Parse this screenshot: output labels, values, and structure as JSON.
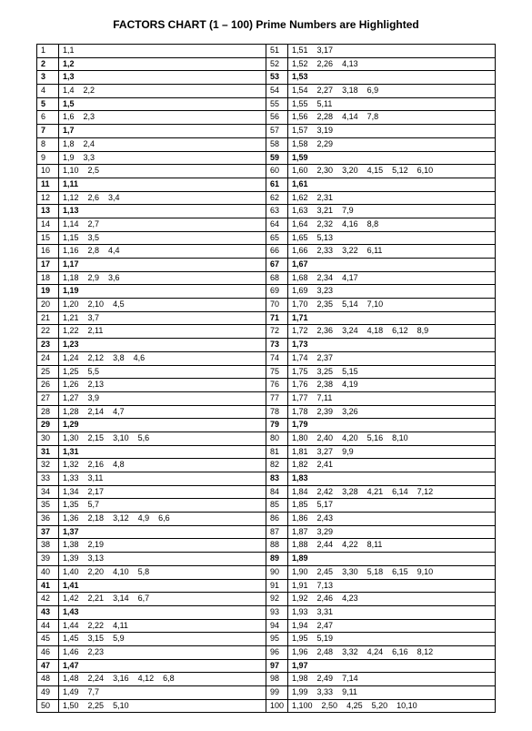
{
  "title": "FACTORS CHART (1 – 100)  Prime Numbers are Highlighted",
  "colors": {
    "bg": "#ffffff",
    "border": "#000000",
    "text": "#000000"
  },
  "font": {
    "title_size": 12,
    "cell_size": 9,
    "family": "Arial"
  },
  "rows": [
    {
      "l": {
        "n": 1,
        "f": [
          "1,1"
        ],
        "p": false
      },
      "r": {
        "n": 51,
        "f": [
          "1,51",
          "3,17"
        ],
        "p": false
      }
    },
    {
      "l": {
        "n": 2,
        "f": [
          "1,2"
        ],
        "p": true
      },
      "r": {
        "n": 52,
        "f": [
          "1,52",
          "2,26",
          "4,13"
        ],
        "p": false
      }
    },
    {
      "l": {
        "n": 3,
        "f": [
          "1,3"
        ],
        "p": true
      },
      "r": {
        "n": 53,
        "f": [
          "1,53"
        ],
        "p": true
      }
    },
    {
      "l": {
        "n": 4,
        "f": [
          "1,4",
          "2,2"
        ],
        "p": false
      },
      "r": {
        "n": 54,
        "f": [
          "1,54",
          "2,27",
          "3,18",
          "6,9"
        ],
        "p": false
      }
    },
    {
      "l": {
        "n": 5,
        "f": [
          "1,5"
        ],
        "p": true
      },
      "r": {
        "n": 55,
        "f": [
          "1,55",
          "5,11"
        ],
        "p": false
      }
    },
    {
      "l": {
        "n": 6,
        "f": [
          "1,6",
          "2,3"
        ],
        "p": false
      },
      "r": {
        "n": 56,
        "f": [
          "1,56",
          "2,28",
          "4,14",
          "7,8"
        ],
        "p": false
      }
    },
    {
      "l": {
        "n": 7,
        "f": [
          "1,7"
        ],
        "p": true
      },
      "r": {
        "n": 57,
        "f": [
          "1,57",
          "3,19"
        ],
        "p": false
      }
    },
    {
      "l": {
        "n": 8,
        "f": [
          "1,8",
          "2,4"
        ],
        "p": false
      },
      "r": {
        "n": 58,
        "f": [
          "1,58",
          "2,29"
        ],
        "p": false
      }
    },
    {
      "l": {
        "n": 9,
        "f": [
          "1,9",
          "3,3"
        ],
        "p": false
      },
      "r": {
        "n": 59,
        "f": [
          "1,59"
        ],
        "p": true
      }
    },
    {
      "l": {
        "n": 10,
        "f": [
          "1,10",
          "2,5"
        ],
        "p": false
      },
      "r": {
        "n": 60,
        "f": [
          "1,60",
          "2,30",
          "3,20",
          "4,15",
          "5,12",
          "6,10"
        ],
        "p": false
      }
    },
    {
      "l": {
        "n": 11,
        "f": [
          "1,11"
        ],
        "p": true
      },
      "r": {
        "n": 61,
        "f": [
          "1,61"
        ],
        "p": true
      }
    },
    {
      "l": {
        "n": 12,
        "f": [
          "1,12",
          "2,6",
          "3,4"
        ],
        "p": false
      },
      "r": {
        "n": 62,
        "f": [
          "1,62",
          "2,31"
        ],
        "p": false
      }
    },
    {
      "l": {
        "n": 13,
        "f": [
          "1,13"
        ],
        "p": true
      },
      "r": {
        "n": 63,
        "f": [
          "1,63",
          "3,21",
          "7,9"
        ],
        "p": false
      }
    },
    {
      "l": {
        "n": 14,
        "f": [
          "1,14",
          "2,7"
        ],
        "p": false
      },
      "r": {
        "n": 64,
        "f": [
          "1,64",
          "2,32",
          "4,16",
          "8,8"
        ],
        "p": false
      }
    },
    {
      "l": {
        "n": 15,
        "f": [
          "1,15",
          "3,5"
        ],
        "p": false
      },
      "r": {
        "n": 65,
        "f": [
          "1,65",
          "5,13"
        ],
        "p": false
      }
    },
    {
      "l": {
        "n": 16,
        "f": [
          "1,16",
          "2,8",
          "4,4"
        ],
        "p": false
      },
      "r": {
        "n": 66,
        "f": [
          "1,66",
          "2,33",
          "3,22",
          "6,11"
        ],
        "p": false
      }
    },
    {
      "l": {
        "n": 17,
        "f": [
          "1,17"
        ],
        "p": true
      },
      "r": {
        "n": 67,
        "f": [
          "1,67"
        ],
        "p": true
      }
    },
    {
      "l": {
        "n": 18,
        "f": [
          "1,18",
          "2,9",
          "3,6"
        ],
        "p": false
      },
      "r": {
        "n": 68,
        "f": [
          "1,68",
          "2,34",
          "4,17"
        ],
        "p": false
      }
    },
    {
      "l": {
        "n": 19,
        "f": [
          "1,19"
        ],
        "p": true
      },
      "r": {
        "n": 69,
        "f": [
          "1,69",
          "3,23"
        ],
        "p": false
      }
    },
    {
      "l": {
        "n": 20,
        "f": [
          "1,20",
          "2,10",
          "4,5"
        ],
        "p": false
      },
      "r": {
        "n": 70,
        "f": [
          "1,70",
          "2,35",
          "5,14",
          "7,10"
        ],
        "p": false
      }
    },
    {
      "l": {
        "n": 21,
        "f": [
          "1,21",
          "3,7"
        ],
        "p": false
      },
      "r": {
        "n": 71,
        "f": [
          "1,71"
        ],
        "p": true
      }
    },
    {
      "l": {
        "n": 22,
        "f": [
          "1,22",
          "2,11"
        ],
        "p": false
      },
      "r": {
        "n": 72,
        "f": [
          "1,72",
          "2,36",
          "3,24",
          "4,18",
          "6,12",
          "8,9"
        ],
        "p": false
      }
    },
    {
      "l": {
        "n": 23,
        "f": [
          "1,23"
        ],
        "p": true
      },
      "r": {
        "n": 73,
        "f": [
          "1,73"
        ],
        "p": true
      }
    },
    {
      "l": {
        "n": 24,
        "f": [
          "1,24",
          "2,12",
          "3,8",
          "4,6"
        ],
        "p": false
      },
      "r": {
        "n": 74,
        "f": [
          "1,74",
          "2,37"
        ],
        "p": false
      }
    },
    {
      "l": {
        "n": 25,
        "f": [
          "1,25",
          "5,5"
        ],
        "p": false
      },
      "r": {
        "n": 75,
        "f": [
          "1,75",
          "3,25",
          "5,15"
        ],
        "p": false
      }
    },
    {
      "l": {
        "n": 26,
        "f": [
          "1,26",
          "2,13"
        ],
        "p": false
      },
      "r": {
        "n": 76,
        "f": [
          "1,76",
          "2,38",
          "4,19"
        ],
        "p": false
      }
    },
    {
      "l": {
        "n": 27,
        "f": [
          "1,27",
          "3,9"
        ],
        "p": false
      },
      "r": {
        "n": 77,
        "f": [
          "1,77",
          "7,11"
        ],
        "p": false
      }
    },
    {
      "l": {
        "n": 28,
        "f": [
          "1,28",
          "2,14",
          "4,7"
        ],
        "p": false
      },
      "r": {
        "n": 78,
        "f": [
          "1,78",
          "2,39",
          "3,26"
        ],
        "p": false
      }
    },
    {
      "l": {
        "n": 29,
        "f": [
          "1,29"
        ],
        "p": true
      },
      "r": {
        "n": 79,
        "f": [
          "1,79"
        ],
        "p": true
      }
    },
    {
      "l": {
        "n": 30,
        "f": [
          "1,30",
          "2,15",
          "3,10",
          "5,6"
        ],
        "p": false
      },
      "r": {
        "n": 80,
        "f": [
          "1,80",
          "2,40",
          "4,20",
          "5,16",
          "8,10"
        ],
        "p": false
      }
    },
    {
      "l": {
        "n": 31,
        "f": [
          "1,31"
        ],
        "p": true
      },
      "r": {
        "n": 81,
        "f": [
          "1,81",
          "3,27",
          "9,9"
        ],
        "p": false
      }
    },
    {
      "l": {
        "n": 32,
        "f": [
          "1,32",
          "2,16",
          "4,8"
        ],
        "p": false
      },
      "r": {
        "n": 82,
        "f": [
          "1,82",
          "2,41"
        ],
        "p": false
      }
    },
    {
      "l": {
        "n": 33,
        "f": [
          "1,33",
          "3,11"
        ],
        "p": false
      },
      "r": {
        "n": 83,
        "f": [
          "1,83"
        ],
        "p": true
      }
    },
    {
      "l": {
        "n": 34,
        "f": [
          "1,34",
          "2,17"
        ],
        "p": false
      },
      "r": {
        "n": 84,
        "f": [
          "1,84",
          "2,42",
          "3,28",
          "4,21",
          "6,14",
          "7,12"
        ],
        "p": false
      }
    },
    {
      "l": {
        "n": 35,
        "f": [
          "1,35",
          "5,7"
        ],
        "p": false
      },
      "r": {
        "n": 85,
        "f": [
          "1,85",
          "5,17"
        ],
        "p": false
      }
    },
    {
      "l": {
        "n": 36,
        "f": [
          "1,36",
          "2,18",
          "3,12",
          "4,9",
          "6,6"
        ],
        "p": false
      },
      "r": {
        "n": 86,
        "f": [
          "1,86",
          "2,43"
        ],
        "p": false
      }
    },
    {
      "l": {
        "n": 37,
        "f": [
          "1,37"
        ],
        "p": true
      },
      "r": {
        "n": 87,
        "f": [
          "1,87",
          "3,29"
        ],
        "p": false
      }
    },
    {
      "l": {
        "n": 38,
        "f": [
          "1,38",
          "2,19"
        ],
        "p": false
      },
      "r": {
        "n": 88,
        "f": [
          "1,88",
          "2,44",
          "4,22",
          "8,11"
        ],
        "p": false
      }
    },
    {
      "l": {
        "n": 39,
        "f": [
          "1,39",
          "3,13"
        ],
        "p": false
      },
      "r": {
        "n": 89,
        "f": [
          "1,89"
        ],
        "p": true
      }
    },
    {
      "l": {
        "n": 40,
        "f": [
          "1,40",
          "2,20",
          "4,10",
          "5,8"
        ],
        "p": false
      },
      "r": {
        "n": 90,
        "f": [
          "1,90",
          "2,45",
          "3,30",
          "5,18",
          "6,15",
          "9,10"
        ],
        "p": false
      }
    },
    {
      "l": {
        "n": 41,
        "f": [
          "1,41"
        ],
        "p": true
      },
      "r": {
        "n": 91,
        "f": [
          "1,91",
          "7,13"
        ],
        "p": false
      }
    },
    {
      "l": {
        "n": 42,
        "f": [
          "1,42",
          "2,21",
          "3,14",
          "6,7"
        ],
        "p": false
      },
      "r": {
        "n": 92,
        "f": [
          "1,92",
          "2,46",
          "4,23"
        ],
        "p": false
      }
    },
    {
      "l": {
        "n": 43,
        "f": [
          "1,43"
        ],
        "p": true
      },
      "r": {
        "n": 93,
        "f": [
          "1,93",
          "3,31"
        ],
        "p": false
      }
    },
    {
      "l": {
        "n": 44,
        "f": [
          "1,44",
          "2,22",
          "4,11"
        ],
        "p": false
      },
      "r": {
        "n": 94,
        "f": [
          "1,94",
          "2,47"
        ],
        "p": false
      }
    },
    {
      "l": {
        "n": 45,
        "f": [
          "1,45",
          "3,15",
          "5,9"
        ],
        "p": false
      },
      "r": {
        "n": 95,
        "f": [
          "1,95",
          "5,19"
        ],
        "p": false
      }
    },
    {
      "l": {
        "n": 46,
        "f": [
          "1,46",
          "2,23"
        ],
        "p": false
      },
      "r": {
        "n": 96,
        "f": [
          "1,96",
          "2,48",
          "3,32",
          "4,24",
          "6,16",
          "8,12"
        ],
        "p": false
      }
    },
    {
      "l": {
        "n": 47,
        "f": [
          "1,47"
        ],
        "p": true
      },
      "r": {
        "n": 97,
        "f": [
          "1,97"
        ],
        "p": true
      }
    },
    {
      "l": {
        "n": 48,
        "f": [
          "1,48",
          "2,24",
          "3,16",
          "4,12",
          "6,8"
        ],
        "p": false
      },
      "r": {
        "n": 98,
        "f": [
          "1,98",
          "2,49",
          "7,14"
        ],
        "p": false
      }
    },
    {
      "l": {
        "n": 49,
        "f": [
          "1,49",
          "7,7"
        ],
        "p": false
      },
      "r": {
        "n": 99,
        "f": [
          "1,99",
          "3,33",
          "9,11"
        ],
        "p": false
      }
    },
    {
      "l": {
        "n": 50,
        "f": [
          "1,50",
          "2,25",
          "5,10"
        ],
        "p": false
      },
      "r": {
        "n": 100,
        "f": [
          "1,100",
          "2,50",
          "4,25",
          "5,20",
          "10,10"
        ],
        "p": false
      }
    }
  ]
}
